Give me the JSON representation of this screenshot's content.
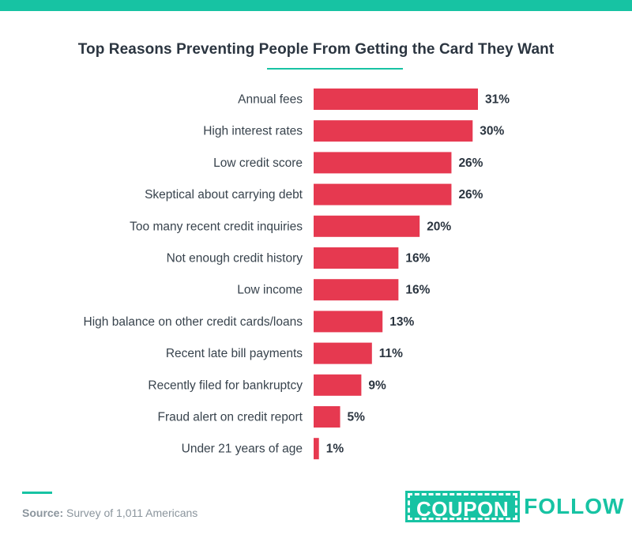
{
  "header": {
    "title": "Top Reasons Preventing People From Getting the Card They Want"
  },
  "chart_data": {
    "type": "bar",
    "orientation": "horizontal",
    "title": "Top Reasons Preventing People From Getting the Card They Want",
    "categories": [
      "Annual fees",
      "High interest rates",
      "Low credit score",
      "Skeptical about carrying debt",
      "Too many recent credit inquiries",
      "Not enough credit history",
      "Low income",
      "High balance on other credit cards/loans",
      "Recent late bill payments",
      "Recently filed for bankruptcy",
      "Fraud alert on credit report",
      "Under 21 years of age"
    ],
    "values": [
      31,
      30,
      26,
      26,
      20,
      16,
      16,
      13,
      11,
      9,
      5,
      1
    ],
    "value_labels": [
      "31%",
      "30%",
      "26%",
      "26%",
      "20%",
      "16%",
      "16%",
      "13%",
      "11%",
      "9%",
      "5%",
      "1%"
    ],
    "unit": "%",
    "xlim": [
      0,
      31
    ],
    "grid": false,
    "bar_color": "#e63950"
  },
  "footer": {
    "source_label": "Source:",
    "source_text": " Survey of 1,011 Americans",
    "logo_left": "COUPON",
    "logo_right": "FOLLOW"
  },
  "colors": {
    "accent": "#17c3a3",
    "bar": "#e63950",
    "text": "#2b3540"
  }
}
